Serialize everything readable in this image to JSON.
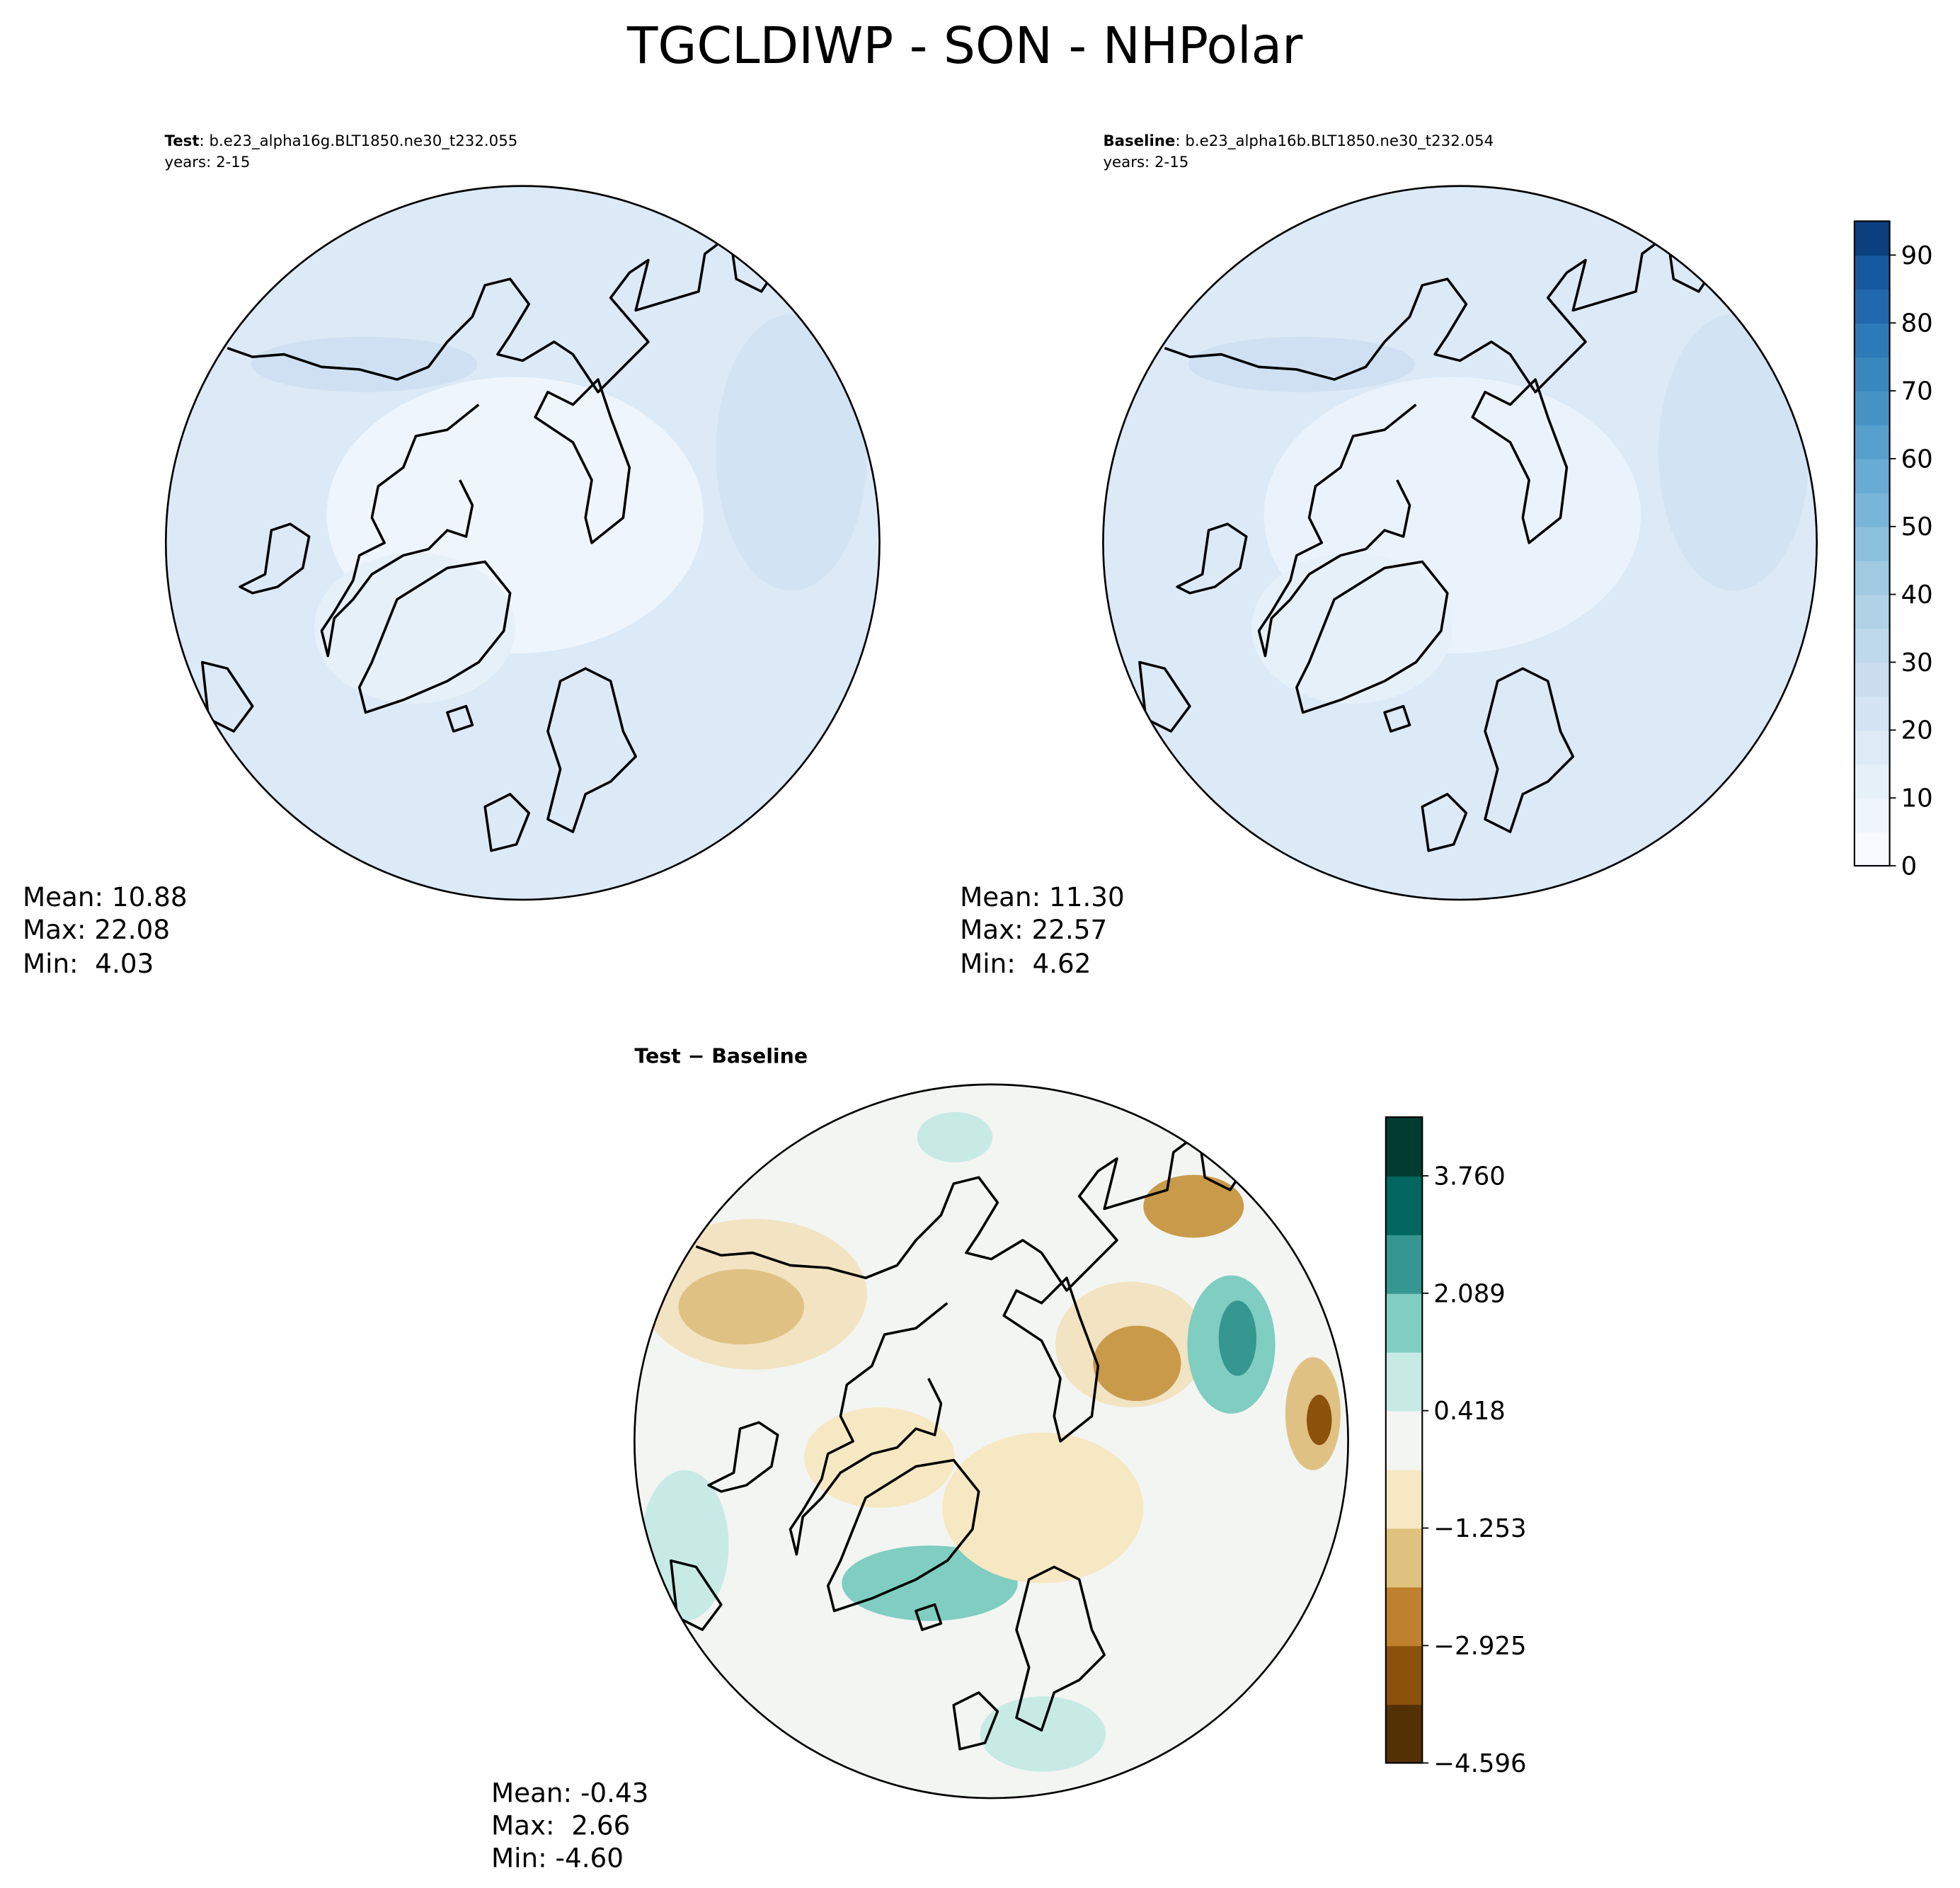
{
  "title": "TGCLDIWP - SON - NHPolar",
  "panels": [
    {
      "label": "Test",
      "case": ": b.e23_alpha16g.BLT1850.ne30_t232.055",
      "years": "years: 2-15",
      "stats": [
        "Mean: 10.88",
        "Max: 22.08",
        "Min:  4.03"
      ]
    },
    {
      "label": "Baseline",
      "case": ": b.e23_alpha16b.BLT1850.ne30_t232.054",
      "years": "years: 2-15",
      "stats": [
        "Mean: 11.30",
        "Max: 22.57",
        "Min:  4.62"
      ]
    },
    {
      "label": "Test − Baseline",
      "stats": [
        "Mean: -0.43",
        "Max:  2.66",
        "Min: -4.60"
      ]
    }
  ],
  "colorbars": [
    {
      "lim": [
        0,
        95
      ],
      "ticks": [
        0,
        10,
        20,
        30,
        40,
        50,
        60,
        70,
        80,
        90
      ],
      "colors": [
        "#f7fbff",
        "#eef5fc",
        "#e6f0f9",
        "#deebf7",
        "#d4e4f4",
        "#cadef0",
        "#bed8ec",
        "#b0d2e7",
        "#9fcae1",
        "#8dc0dd",
        "#79b5d9",
        "#68acd5",
        "#57a0ce",
        "#4893c6",
        "#3a87bf",
        "#2e7ab7",
        "#2268ad",
        "#16599f",
        "#0b3f80"
      ]
    },
    {
      "lim": [
        -4.596,
        4.596
      ],
      "ticks": [
        {
          "value": -4.596,
          "label": "−4.596"
        },
        {
          "value": -2.925,
          "label": "−2.925"
        },
        {
          "value": -1.253,
          "label": "−1.253"
        },
        0.418,
        2.089,
        {
          "value": 3.76,
          "label": "3.760"
        }
      ],
      "colors": [
        "#543005",
        "#8c510a",
        "#bf812d",
        "#dfc27d",
        "#f6e8c3",
        "#f3f5f3",
        "#c7eae5",
        "#80cdc1",
        "#35978f",
        "#01665e",
        "#003c30"
      ]
    }
  ]
}
